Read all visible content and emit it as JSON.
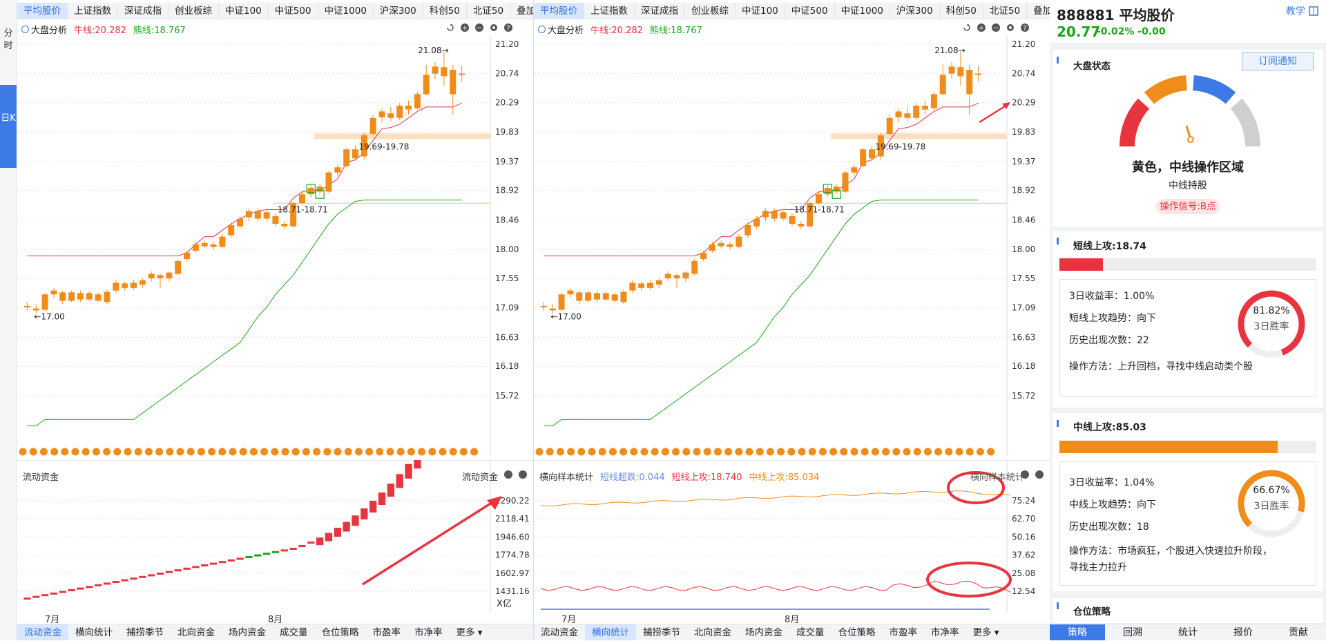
{
  "left_bar": {
    "fenshi": "分时",
    "rik": "日K"
  },
  "top_tabs": [
    "平均股价",
    "上证指数",
    "深证成指",
    "创业板综",
    "中证100",
    "中证500",
    "中证1000",
    "沪深300",
    "科创50",
    "北证50",
    "叠加"
  ],
  "toolbar": {
    "analysis": "大盘分析",
    "bull": "牛线:20.282",
    "bear": "熊线:18.767"
  },
  "price_axis": [
    "21.20",
    "20.74",
    "20.29",
    "19.83",
    "19.37",
    "18.92",
    "18.46",
    "18.00",
    "17.55",
    "17.09",
    "16.63",
    "16.18",
    "15.72"
  ],
  "annotations": {
    "high": "21.08",
    "low": "←17.00",
    "zone_upper": "19.69-19.78",
    "zone_lower": "18.71-18.71"
  },
  "left_sub": {
    "title": "流动资金",
    "title_r": "流动资金",
    "axis": [
      "2290.22",
      "2118.41",
      "1946.60",
      "1774.78",
      "1602.97",
      "1431.16"
    ],
    "unit": "X亿"
  },
  "right_sub": {
    "title": "横向样本统计",
    "s1": "短线超跌:0.044",
    "s2": "短线上攻:18.740",
    "s3": "中线上攻:85.034",
    "title_r": "横向样本统计",
    "axis": [
      "75.24",
      "62.70",
      "50.16",
      "37.62",
      "25.08",
      "12.54"
    ]
  },
  "months": {
    "jul": "7月",
    "aug": "8月"
  },
  "bottom_tabs": [
    "流动资金",
    "横向统计",
    "捕捞季节",
    "北向资金",
    "场内资金",
    "成交量",
    "仓位策略",
    "市盈率",
    "市净率",
    "更多"
  ],
  "right_panel": {
    "code_name": "888881 平均股价",
    "jiaoxue": "教学",
    "price": "20.77",
    "change": "-0.02% -0.00",
    "market_state": "大盘状态",
    "subscribe": "订阅通知",
    "gauge_title": "黄色，中线操作区域",
    "gauge_sub": "中线持股",
    "signal": "操作信号:B点",
    "short": {
      "title": "短线上攻:18.74",
      "bar_pct": 0.17,
      "r1": "3日收益率：1.00%",
      "r2": "短线上攻趋势：向下",
      "r3": "历史出现次数：22",
      "r4": "操作方法：上升回档，寻找中线启动类个股",
      "pct": "81.82%",
      "pct_val": 81.82,
      "pct_label": "3日胜率"
    },
    "mid": {
      "title": "中线上攻:85.03",
      "bar_pct": 0.85,
      "r1": "3日收益率：1.04%",
      "r2": "中线上攻趋势：向下",
      "r3": "历史出现次数：18",
      "r4": "操作方法：市场疯狂，个股进入快速拉升阶段，寻找主力拉升",
      "pct": "66.67%",
      "pct_val": 66.67,
      "pct_label": "3日胜率"
    },
    "position": "仓位策略",
    "nav": [
      "策略",
      "回溯",
      "统计",
      "报价",
      "贡献"
    ]
  },
  "colors": {
    "up": "#e8343f",
    "candle": "#f08c19",
    "bear": "#1aa81a",
    "accent": "#3c7be6"
  }
}
